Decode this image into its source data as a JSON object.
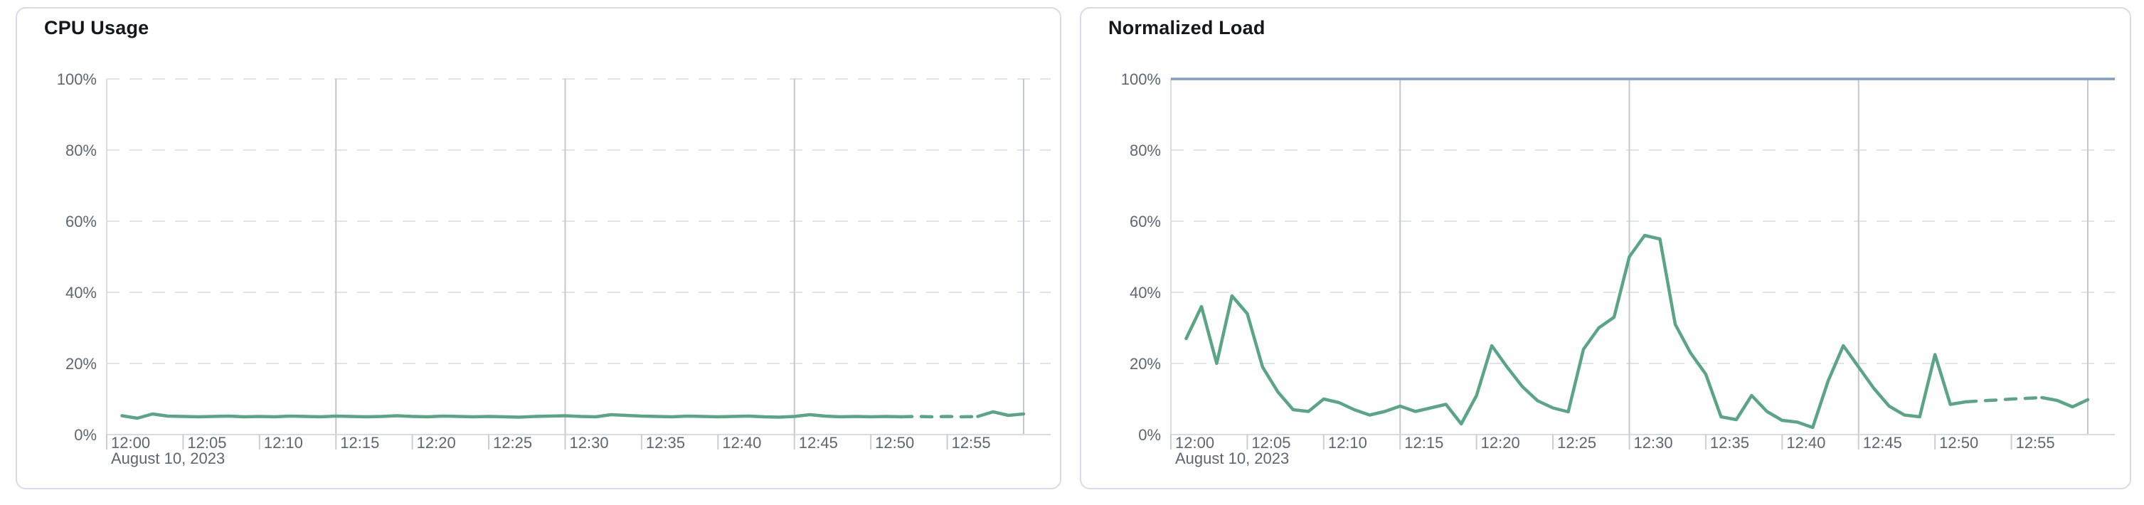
{
  "page": {
    "background_color": "#ffffff",
    "card_border_color": "#d9dce6"
  },
  "chart_data": [
    {
      "type": "line",
      "title": "CPU Usage",
      "date_label": "August 10, 2023",
      "x_unit": "minutes after 12:00",
      "xlim": [
        0,
        60
      ],
      "ylim": [
        0,
        100
      ],
      "grid": "horizontal-dashed, vertical-major-15min",
      "legend_position": "none",
      "x_tick_minutes": [
        0,
        5,
        10,
        15,
        20,
        25,
        30,
        35,
        40,
        45,
        50,
        55
      ],
      "x_tick_labels": [
        "12:00",
        "12:05",
        "12:10",
        "12:15",
        "12:20",
        "12:25",
        "12:30",
        "12:35",
        "12:40",
        "12:45",
        "12:50",
        "12:55"
      ],
      "y_tick_values": [
        0,
        20,
        40,
        60,
        80,
        100
      ],
      "y_tick_labels": [
        "0%",
        "20%",
        "40%",
        "60%",
        "80%",
        "100%"
      ],
      "major_grid_minutes": [
        15,
        30,
        45,
        60
      ],
      "series": [
        {
          "name": "cpu-usage",
          "color": "#5ba587",
          "width": 4.5,
          "x_start_minute": 1,
          "x_step_minutes": 1,
          "dash_start_minute": 52,
          "dash_end_minute": 57,
          "values": [
            5.3,
            4.6,
            5.8,
            5.2,
            5.1,
            5.0,
            5.1,
            5.2,
            5.0,
            5.1,
            5.0,
            5.2,
            5.1,
            5.0,
            5.2,
            5.1,
            5.0,
            5.1,
            5.3,
            5.1,
            5.0,
            5.2,
            5.1,
            5.0,
            5.1,
            5.0,
            4.9,
            5.1,
            5.2,
            5.3,
            5.1,
            5.0,
            5.6,
            5.4,
            5.2,
            5.1,
            5.0,
            5.2,
            5.1,
            5.0,
            5.1,
            5.2,
            5.0,
            4.9,
            5.1,
            5.6,
            5.2,
            5.0,
            5.1,
            5.0,
            5.1,
            5.0,
            5.1,
            5.0,
            5.1,
            5.0,
            5.1,
            6.4,
            5.4,
            5.8
          ]
        }
      ]
    },
    {
      "type": "line",
      "title": "Normalized Load",
      "date_label": "August 10, 2023",
      "x_unit": "minutes after 12:00",
      "xlim": [
        0,
        60
      ],
      "ylim": [
        0,
        100
      ],
      "grid": "horizontal-dashed, vertical-major-15min",
      "legend_position": "none",
      "x_tick_minutes": [
        0,
        5,
        10,
        15,
        20,
        25,
        30,
        35,
        40,
        45,
        50,
        55
      ],
      "x_tick_labels": [
        "12:00",
        "12:05",
        "12:10",
        "12:15",
        "12:20",
        "12:25",
        "12:30",
        "12:35",
        "12:40",
        "12:45",
        "12:50",
        "12:55"
      ],
      "y_tick_values": [
        0,
        20,
        40,
        60,
        80,
        100
      ],
      "y_tick_labels": [
        "0%",
        "20%",
        "40%",
        "60%",
        "80%",
        "100%"
      ],
      "major_grid_minutes": [
        15,
        30,
        45,
        60
      ],
      "limit_line": {
        "name": "limit-100pct",
        "value": 100,
        "color": "#7e9cc5",
        "width": 3.5
      },
      "series": [
        {
          "name": "normalized-load",
          "color": "#5ba587",
          "width": 4.5,
          "x_start_minute": 1,
          "x_step_minutes": 1,
          "dash_start_minute": 52,
          "dash_end_minute": 57,
          "values": [
            27,
            36,
            20,
            39,
            34,
            19,
            12,
            7,
            6.5,
            10,
            9,
            7,
            5.5,
            6.5,
            8,
            6.5,
            7.5,
            8.5,
            3,
            11,
            25,
            19,
            13.5,
            9.5,
            7.5,
            6.4,
            24,
            30,
            33,
            50,
            56,
            55,
            31,
            23,
            17,
            5,
            4.2,
            11,
            6.5,
            4,
            3.5,
            2,
            15,
            25,
            19,
            13,
            8,
            5.5,
            5,
            22.5,
            8.5,
            9.2,
            9.5,
            9.7,
            10,
            10.2,
            10.4,
            9.6,
            7.8,
            9.8
          ]
        }
      ]
    }
  ]
}
